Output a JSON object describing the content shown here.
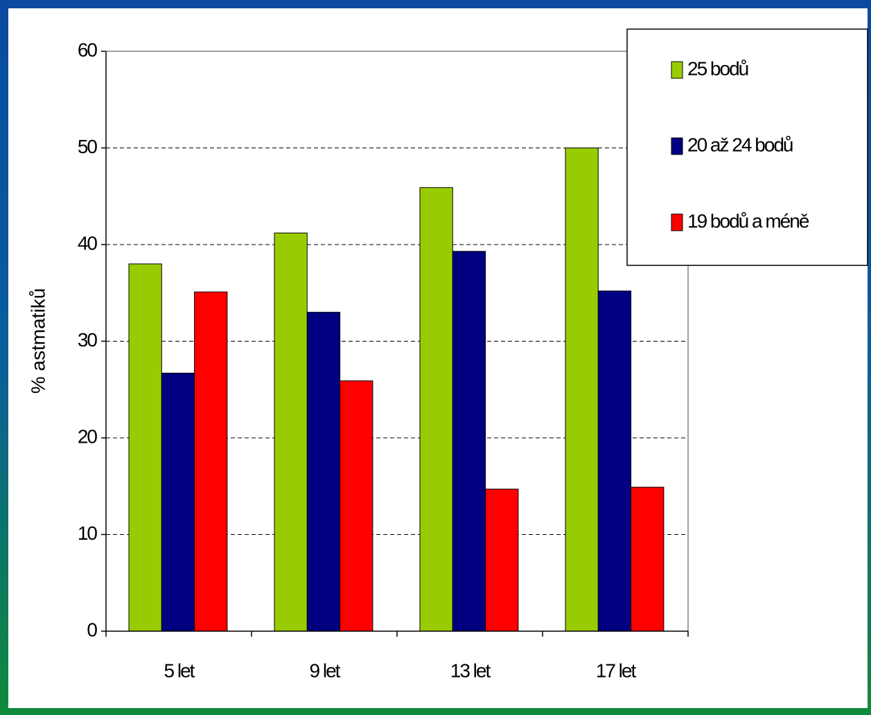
{
  "chart_data": {
    "type": "bar",
    "y_label": "% astmatiků",
    "categories": [
      "5 let",
      "9 let",
      "13 let",
      "17 let"
    ],
    "series": [
      {
        "name": "25 bodů",
        "color": "#99cc00",
        "values": [
          38.0,
          41.2,
          45.9,
          50.0
        ]
      },
      {
        "name": "20 až 24 bodů",
        "color": "#000080",
        "values": [
          26.7,
          33.0,
          39.3,
          35.2
        ]
      },
      {
        "name": "19 bodů a méně",
        "color": "#ff0000",
        "values": [
          35.1,
          25.9,
          14.7,
          14.9
        ]
      }
    ],
    "ylim": [
      0,
      60
    ],
    "yticks": [
      0,
      10,
      20,
      30,
      40,
      50,
      60
    ],
    "grid": true,
    "legend": "upper right"
  }
}
